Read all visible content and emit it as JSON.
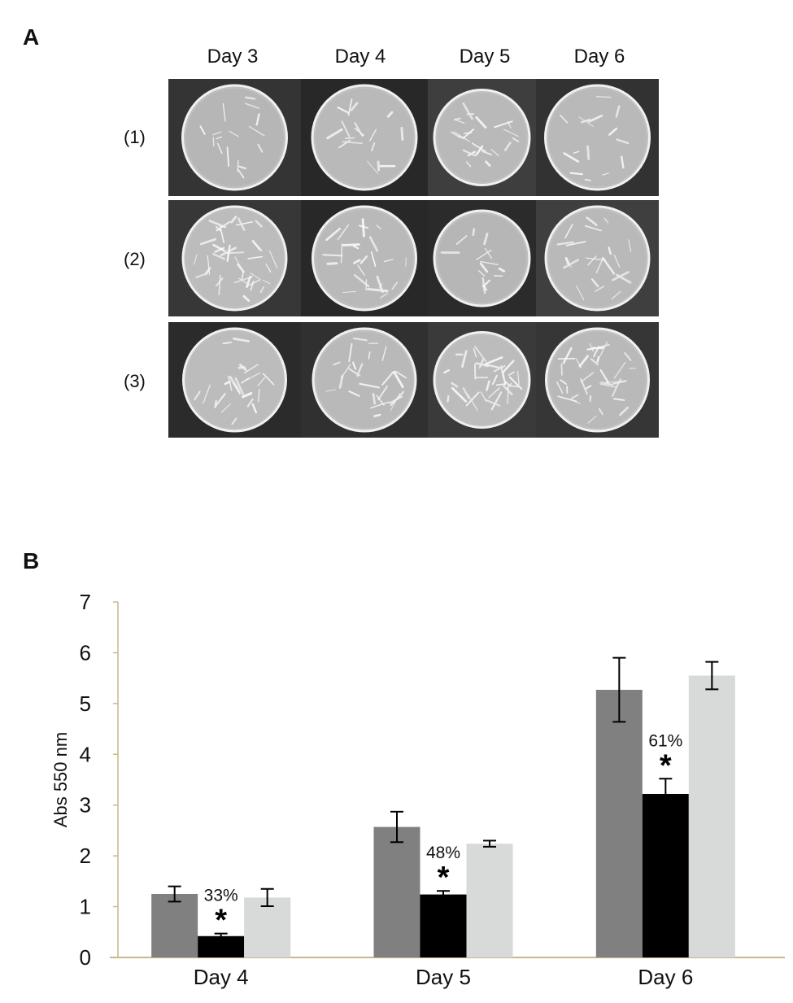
{
  "panel_a": {
    "label": "A",
    "columns": [
      "Day 3",
      "Day 4",
      "Day 5",
      "Day 6"
    ],
    "rows": [
      "(1)",
      "(2)",
      "(3)"
    ]
  },
  "panel_b": {
    "label": "B"
  },
  "chart_data": {
    "type": "bar",
    "categories": [
      "Day 4",
      "Day 5",
      "Day 6"
    ],
    "ylabel": "Abs 550 nm",
    "ylim": [
      0,
      7
    ],
    "yticks": [
      0,
      1,
      2,
      3,
      4,
      5,
      6,
      7
    ],
    "series": [
      {
        "color": "#808080",
        "values": [
          1.25,
          2.57,
          5.27
        ],
        "errors": [
          0.15,
          0.3,
          0.63
        ]
      },
      {
        "color": "#000000",
        "values": [
          0.42,
          1.24,
          3.22
        ],
        "errors": [
          0.05,
          0.07,
          0.3
        ]
      },
      {
        "color": "#d8d9d9",
        "values": [
          1.18,
          2.24,
          5.55
        ],
        "errors": [
          0.17,
          0.06,
          0.27
        ]
      }
    ],
    "annotations": [
      {
        "category": "Day 4",
        "series": 1,
        "percent": "33%",
        "marker": "*"
      },
      {
        "category": "Day 5",
        "series": 1,
        "percent": "48%",
        "marker": "*"
      },
      {
        "category": "Day 6",
        "series": 1,
        "percent": "61%",
        "marker": "*"
      }
    ],
    "axis_color": "#c8b88a",
    "grid": false
  }
}
